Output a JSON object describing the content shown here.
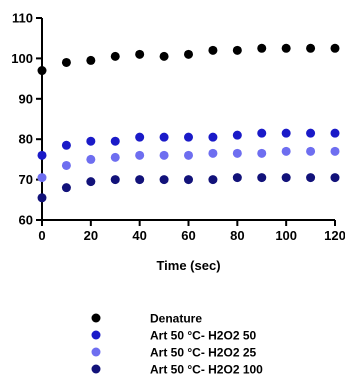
{
  "chart_data": {
    "type": "scatter",
    "title": "",
    "xlabel": "Time (sec)",
    "ylabel": "",
    "xlim": [
      0,
      120
    ],
    "ylim": [
      60,
      110
    ],
    "x_ticks": [
      0,
      20,
      40,
      60,
      80,
      100,
      120
    ],
    "y_ticks": [
      60,
      70,
      80,
      90,
      100,
      110
    ],
    "x_tick_labels": [
      "0",
      "20",
      "40",
      "60",
      "80",
      "100",
      "120"
    ],
    "y_tick_labels": [
      "60",
      "70",
      "80",
      "90",
      "100",
      "110"
    ],
    "grid": false,
    "legend_position": "bottom",
    "x": [
      0,
      10,
      20,
      30,
      40,
      50,
      60,
      70,
      80,
      90,
      100,
      110,
      120
    ],
    "series": [
      {
        "name": "Denature",
        "color": "#000000",
        "values": [
          97,
          99,
          99.5,
          100.5,
          101,
          100.5,
          101,
          102,
          102,
          102.5,
          102.5,
          102.5,
          102.5
        ]
      },
      {
        "name": "Art 50 °C- H2O2 50",
        "color": "#1a1ac8",
        "values": [
          76,
          78.5,
          79.5,
          79.5,
          80.5,
          80.5,
          80.5,
          80.5,
          81,
          81.5,
          81.5,
          81.5,
          81.5
        ]
      },
      {
        "name": "Art 50 °C- H2O2 25",
        "color": "#6e6ef0",
        "values": [
          70.5,
          73.5,
          75,
          75.5,
          76,
          76,
          76,
          76.5,
          76.5,
          76.5,
          77,
          77,
          77
        ]
      },
      {
        "name": "Art 50 °C- H2O2 100",
        "color": "#12127a",
        "values": [
          65.5,
          68,
          69.5,
          70,
          70,
          70,
          70,
          70,
          70.5,
          70.5,
          70.5,
          70.5,
          70.5
        ]
      }
    ]
  }
}
